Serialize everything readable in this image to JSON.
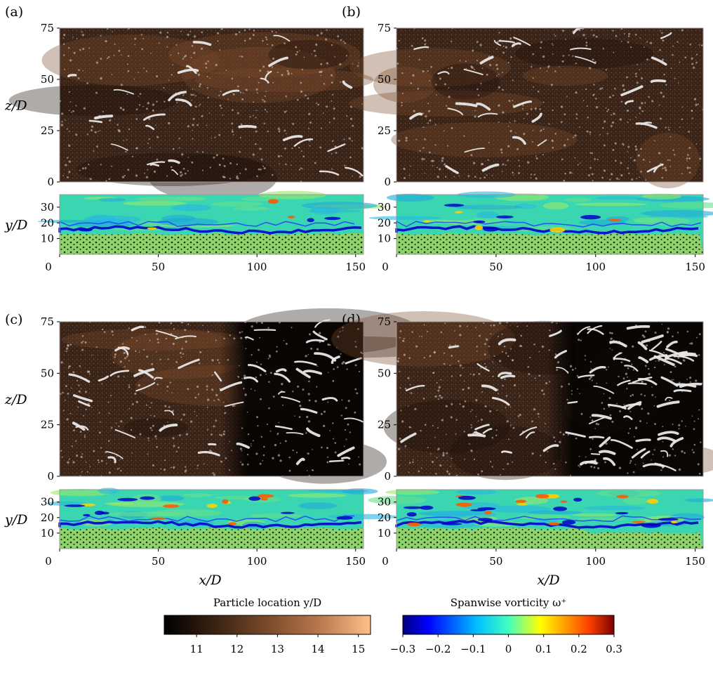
{
  "panels": [
    {
      "label": "(a)",
      "top": {
        "ylabel": "z/D",
        "yticks": [
          "0",
          "25",
          "50",
          "75"
        ]
      },
      "bottom": {
        "ylabel": "y/D",
        "yticks": [
          "10",
          "20",
          "30"
        ],
        "xticks": [
          "0",
          "50",
          "100",
          "150"
        ]
      }
    },
    {
      "label": "(b)",
      "top": {
        "ylabel": "",
        "yticks": [
          "0",
          "25",
          "50",
          "75"
        ]
      },
      "bottom": {
        "ylabel": "",
        "yticks": [
          "10",
          "20",
          "30"
        ],
        "xticks": [
          "0",
          "50",
          "100",
          "150"
        ]
      }
    },
    {
      "label": "(c)",
      "top": {
        "ylabel": "z/D",
        "yticks": [
          "0",
          "25",
          "50",
          "75"
        ]
      },
      "bottom": {
        "ylabel": "y/D",
        "yticks": [
          "10",
          "20",
          "30"
        ],
        "xticks": [
          "0",
          "50",
          "100",
          "150"
        ],
        "xlabel": "x/D"
      }
    },
    {
      "label": "(d)",
      "top": {
        "ylabel": "",
        "yticks": [
          "0",
          "25",
          "50",
          "75"
        ]
      },
      "bottom": {
        "ylabel": "",
        "yticks": [
          "10",
          "20",
          "30"
        ],
        "xticks": [
          "0",
          "50",
          "100",
          "150"
        ],
        "xlabel": "x/D"
      }
    }
  ],
  "colorbars": [
    {
      "title": "Particle location y/D",
      "ticks": [
        "11",
        "12",
        "13",
        "14",
        "15"
      ],
      "range": [
        10.2,
        15.3
      ],
      "colors": [
        "#000000",
        "#3a2312",
        "#7a4a2a",
        "#b8774d",
        "#ffc088"
      ]
    },
    {
      "title": "Spanwise vorticity ω⁺",
      "ticks": [
        "−0.3",
        "−0.2",
        "−0.1",
        "0",
        "0.1",
        "0.2",
        "0.3"
      ],
      "range": [
        -0.3,
        0.3
      ],
      "colors": [
        "#00007f",
        "#0000ff",
        "#00bfff",
        "#40ffc0",
        "#ffff00",
        "#ff4000",
        "#7f0000"
      ]
    }
  ],
  "colors": {
    "particle_bed": "#8fd46a",
    "sediment_top": "#3a2418",
    "vorticity_bg": "#3ad6b2",
    "vortex_tubes": "#e8e8e8"
  }
}
